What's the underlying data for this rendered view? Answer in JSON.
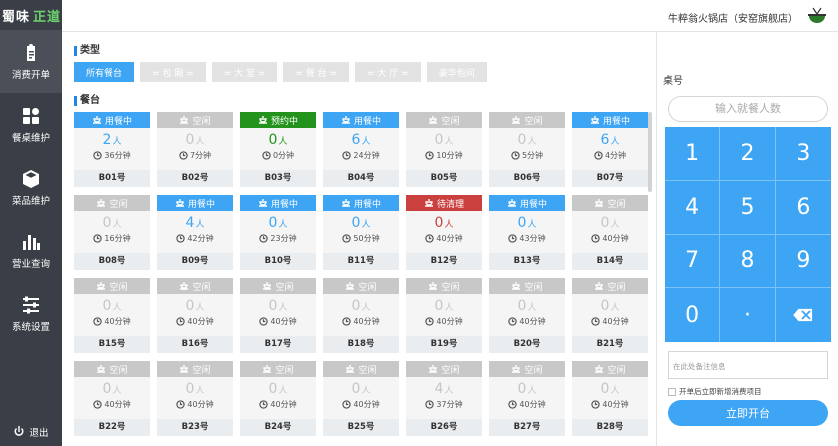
{
  "app": {
    "logo_part1": "蜀味",
    "logo_part2": "正道"
  },
  "sidebar": {
    "items": [
      {
        "label": "消费开单",
        "icon": "clipboard-icon"
      },
      {
        "label": "餐桌维护",
        "icon": "grid-icon"
      },
      {
        "label": "菜品维护",
        "icon": "box-icon"
      },
      {
        "label": "营业查询",
        "icon": "bar-chart-icon"
      },
      {
        "label": "系统设置",
        "icon": "settings-sliders-icon"
      }
    ],
    "logout": "退出"
  },
  "header": {
    "store": "牛粹翁火锅店（安窑旗舰店）"
  },
  "types": {
    "title": "类型",
    "items": [
      "所有餐台",
      "= 包 厢 =",
      "= 大 堂 =",
      "= 餐 台 =",
      "= 大 厅 =",
      "豪华包间"
    ]
  },
  "tables_title": "餐台",
  "person_unit": "人",
  "tables": [
    {
      "status": "用餐中",
      "type": "busy",
      "count": "2",
      "dur": "36分钟",
      "no": "B01号"
    },
    {
      "status": "空闲",
      "type": "free",
      "count": "0",
      "dur": "7分钟",
      "no": "B02号"
    },
    {
      "status": "预约中",
      "type": "book",
      "count": "0",
      "dur": "0分钟",
      "no": "B03号"
    },
    {
      "status": "用餐中",
      "type": "busy",
      "count": "6",
      "dur": "24分钟",
      "no": "B04号"
    },
    {
      "status": "空闲",
      "type": "free",
      "count": "0",
      "dur": "10分钟",
      "no": "B05号"
    },
    {
      "status": "空闲",
      "type": "free",
      "count": "0",
      "dur": "5分钟",
      "no": "B06号"
    },
    {
      "status": "用餐中",
      "type": "busy",
      "count": "6",
      "dur": "4分钟",
      "no": "B07号"
    },
    {
      "status": "空闲",
      "type": "free",
      "count": "0",
      "dur": "16分钟",
      "no": "B08号"
    },
    {
      "status": "用餐中",
      "type": "busy",
      "count": "4",
      "dur": "42分钟",
      "no": "B09号"
    },
    {
      "status": "用餐中",
      "type": "busy",
      "count": "0",
      "dur": "23分钟",
      "no": "B10号"
    },
    {
      "status": "用餐中",
      "type": "busy",
      "count": "0",
      "dur": "50分钟",
      "no": "B11号"
    },
    {
      "status": "待清理",
      "type": "clean",
      "count": "0",
      "dur": "40分钟",
      "no": "B12号"
    },
    {
      "status": "用餐中",
      "type": "busy",
      "count": "0",
      "dur": "43分钟",
      "no": "B13号"
    },
    {
      "status": "空闲",
      "type": "free",
      "count": "0",
      "dur": "40分钟",
      "no": "B14号"
    },
    {
      "status": "空闲",
      "type": "free",
      "count": "0",
      "dur": "40分钟",
      "no": "B15号"
    },
    {
      "status": "空闲",
      "type": "free",
      "count": "0",
      "dur": "40分钟",
      "no": "B16号"
    },
    {
      "status": "空闲",
      "type": "free",
      "count": "0",
      "dur": "40分钟",
      "no": "B17号"
    },
    {
      "status": "空闲",
      "type": "free",
      "count": "0",
      "dur": "40分钟",
      "no": "B18号"
    },
    {
      "status": "空闲",
      "type": "free",
      "count": "0",
      "dur": "40分钟",
      "no": "B19号"
    },
    {
      "status": "空闲",
      "type": "free",
      "count": "0",
      "dur": "40分钟",
      "no": "B20号"
    },
    {
      "status": "空闲",
      "type": "free",
      "count": "0",
      "dur": "40分钟",
      "no": "B21号"
    },
    {
      "status": "空闲",
      "type": "free",
      "count": "0",
      "dur": "40分钟",
      "no": "B22号"
    },
    {
      "status": "空闲",
      "type": "free",
      "count": "0",
      "dur": "40分钟",
      "no": "B23号"
    },
    {
      "status": "空闲",
      "type": "free",
      "count": "0",
      "dur": "40分钟",
      "no": "B24号"
    },
    {
      "status": "空闲",
      "type": "free",
      "count": "0",
      "dur": "40分钟",
      "no": "B25号"
    },
    {
      "status": "空闲",
      "type": "free",
      "count": "4",
      "dur": "37分钟",
      "no": "B26号"
    },
    {
      "status": "空闲",
      "type": "free",
      "count": "0",
      "dur": "40分钟",
      "no": "B27号"
    },
    {
      "status": "空闲",
      "type": "free",
      "count": "0",
      "dur": "40分钟",
      "no": "B28号"
    }
  ],
  "panel": {
    "title": "桌号",
    "guest_placeholder": "输入就餐人数",
    "keys": [
      "1",
      "2",
      "3",
      "4",
      "5",
      "6",
      "7",
      "8",
      "9",
      "0",
      "·",
      "⌫"
    ],
    "note_placeholder": "在此处备注信息",
    "checkbox_label": "开单后立即新增消费项目",
    "open_button": "立即开台"
  },
  "colors": {
    "accent": "#3da5f4",
    "sidebar": "#3a3f47",
    "busy": "#3da5f4",
    "booked": "#24931d",
    "clean": "#c9403f",
    "free": "#c8c8c8"
  }
}
